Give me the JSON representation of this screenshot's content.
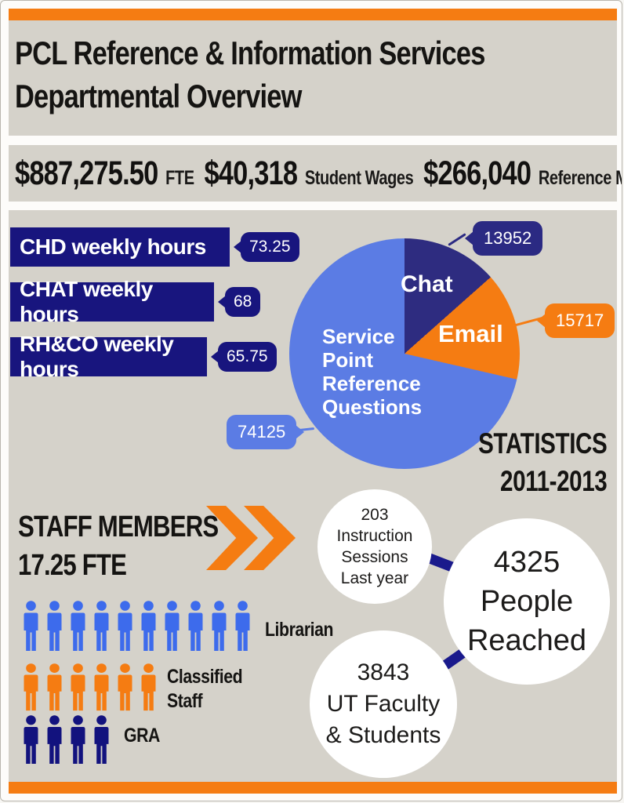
{
  "colors": {
    "orange": "#F57C12",
    "beige": "#D5D2CA",
    "navy": "#18157E",
    "pie_navy": "#2E2C80",
    "blue": "#5B7CE4",
    "person_blue": "#3D6BEC",
    "person_navy": "#12127E"
  },
  "header": {
    "title_line1": "PCL Reference & Information Services",
    "title_line2": "Departmental Overview"
  },
  "budget": {
    "items": [
      {
        "amount": "$887,275.50",
        "label": "FTE"
      },
      {
        "amount": "$40,318",
        "label": "Student Wages"
      },
      {
        "amount": "$266,040",
        "label": "Reference Material"
      }
    ]
  },
  "weekly_hours": {
    "bars": [
      {
        "label": "CHD weekly hours",
        "value": 73.25,
        "display": "73.25"
      },
      {
        "label": "CHAT weekly hours",
        "value": 68,
        "display": "68"
      },
      {
        "label": "RH&CO weekly hours",
        "value": 65.75,
        "display": "65.75"
      }
    ]
  },
  "chart_data": {
    "type": "pie",
    "title": "Service Point Reference Questions",
    "start_angle_deg": 0,
    "direction": "clockwise-from-top",
    "legend_position": "labels-on-slices",
    "slices": [
      {
        "label": "Chat",
        "value": 13952,
        "color": "#2E2C80"
      },
      {
        "label": "Email",
        "value": 15717,
        "color": "#F57C12"
      },
      {
        "label": "Service Point Reference Questions",
        "value": 74125,
        "color": "#5B7CE4"
      }
    ]
  },
  "statistics_heading": {
    "line1": "STATISTICS",
    "line2": "2011-2013"
  },
  "staff": {
    "heading_line1": "STAFF MEMBERS",
    "heading_line2": "17.25 FTE",
    "groups": [
      {
        "label": "Librarian",
        "count": 10,
        "color": "#3D6BEC"
      },
      {
        "label": "Classified Staff",
        "count": 6,
        "color": "#F57C12"
      },
      {
        "label": "GRA",
        "count": 4,
        "color": "#12127E"
      }
    ]
  },
  "outreach": {
    "circles": [
      {
        "lines": [
          "203",
          "Instruction",
          "Sessions",
          "Last year"
        ]
      },
      {
        "lines": [
          "4325",
          "People",
          "Reached"
        ]
      },
      {
        "lines": [
          "3843",
          "UT Faculty",
          "& Students"
        ]
      }
    ]
  }
}
